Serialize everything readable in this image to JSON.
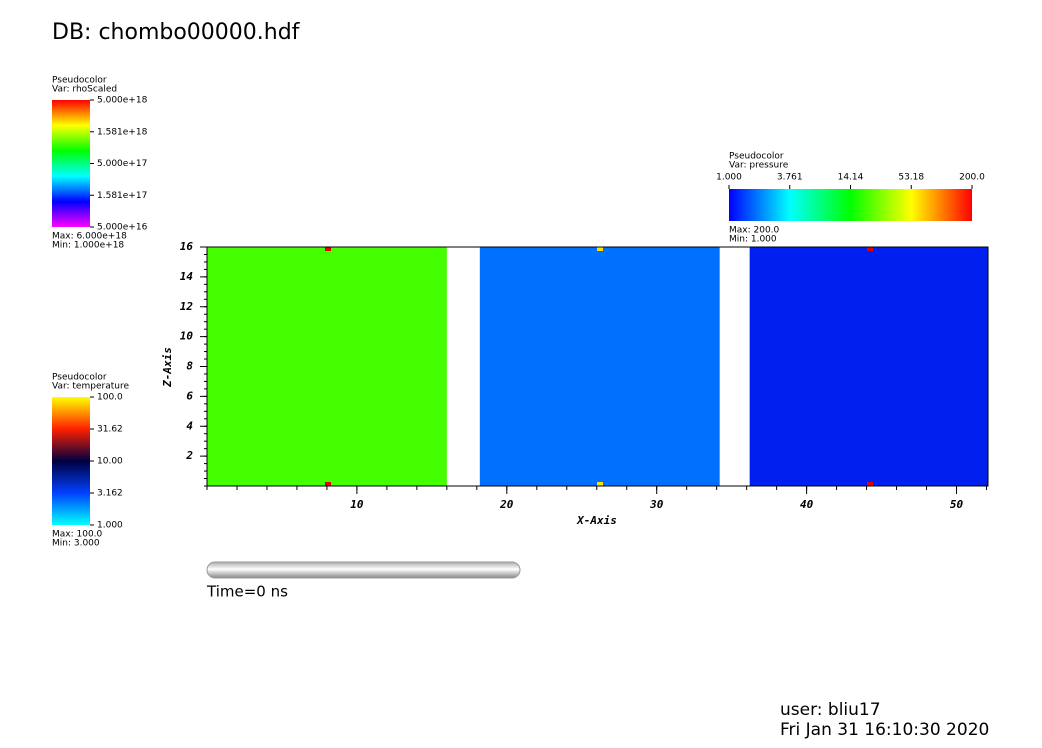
{
  "header": {
    "title": "DB: chombo00000.hdf"
  },
  "chart_data": {
    "type": "pseudocolor",
    "xlabel": "X-Axis",
    "ylabel": "Z-Axis",
    "xlim": [
      0,
      52.1
    ],
    "ylim": [
      0,
      16
    ],
    "xticks": [
      10,
      20,
      30,
      40,
      50
    ],
    "yticks": [
      2,
      4,
      6,
      8,
      10,
      12,
      14,
      16
    ],
    "blocks": [
      {
        "x": [
          0,
          16
        ],
        "color": "#44ff00"
      },
      {
        "x": [
          18.2,
          34.2
        ],
        "color": "#0070ff"
      },
      {
        "x": [
          36.2,
          52.1
        ],
        "color": "#0020f0"
      }
    ]
  },
  "legends": [
    {
      "title": "Pseudocolor",
      "var": "Var: rhoScaled",
      "orientation": "vertical",
      "labels": [
        "5.000e+18",
        "1.581e+18",
        "5.000e+17",
        "1.581e+17",
        "5.000e+16"
      ],
      "colors": [
        "#ff0000",
        "#ffff00",
        "#00ff00",
        "#00ffff",
        "#0000ff",
        "#ff00ff"
      ],
      "max": "Max:  6.000e+18",
      "min": "Min:  1.000e+18"
    },
    {
      "title": "Pseudocolor",
      "var": "Var: pressure",
      "orientation": "horizontal",
      "labels": [
        "1.000",
        "3.761",
        "14.14",
        "53.18",
        "200.0"
      ],
      "colors": [
        "#0000ff",
        "#00ffff",
        "#00ff00",
        "#ffff00",
        "#ff0000"
      ],
      "max": "Max:  200.0",
      "min": "Min:  1.000"
    },
    {
      "title": "Pseudocolor",
      "var": "Var: temperature",
      "orientation": "vertical",
      "labels": [
        "100.0",
        "31.62",
        "10.00",
        "3.162",
        "1.000"
      ],
      "colors": [
        "#ffff00",
        "#ff2000",
        "#000040",
        "#0040ff",
        "#00ffff"
      ],
      "max": "Max:  100.0",
      "min": "Min:  3.000"
    }
  ],
  "time": "Time=0 ns",
  "footer": {
    "user": "user: bliu17",
    "date": "Fri Jan 31 16:10:30 2020"
  }
}
